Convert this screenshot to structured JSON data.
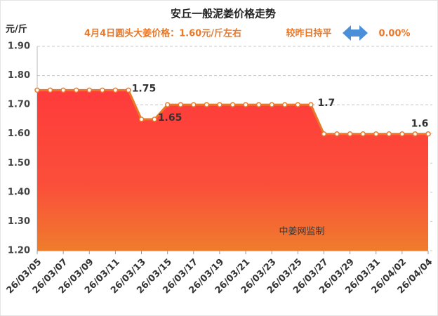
{
  "chart_data": {
    "type": "area",
    "title": "安丘一般泥姜价格走势",
    "subtitle": "4月4日圆头大姜价格：1.60元/斤左右",
    "change_text": "较昨日持平",
    "change_value": "0.00%",
    "y_label": "元/斤",
    "watermark": "中姜网监制",
    "categories": [
      "26/03/05",
      null,
      "26/03/07",
      null,
      "26/03/09",
      null,
      "26/03/11",
      null,
      "26/03/13",
      null,
      "26/03/15",
      null,
      "26/03/17",
      null,
      "26/03/19",
      null,
      "26/03/21",
      null,
      "26/03/23",
      null,
      "26/03/25",
      null,
      "26/03/27",
      null,
      "26/03/29",
      null,
      "26/03/31",
      null,
      "26/04/02",
      null,
      "26/04/04"
    ],
    "values": [
      1.75,
      1.75,
      1.75,
      1.75,
      1.75,
      1.75,
      1.75,
      1.75,
      1.65,
      1.65,
      1.7,
      1.7,
      1.7,
      1.7,
      1.7,
      1.7,
      1.7,
      1.7,
      1.7,
      1.7,
      1.7,
      1.7,
      1.6,
      1.6,
      1.6,
      1.6,
      1.6,
      1.6,
      1.6,
      1.6,
      1.6
    ],
    "value_labels": [
      null,
      null,
      null,
      null,
      null,
      null,
      null,
      "1.75",
      null,
      "1.65",
      null,
      null,
      null,
      null,
      null,
      null,
      null,
      null,
      null,
      null,
      null,
      "1.7",
      null,
      null,
      null,
      null,
      null,
      null,
      null,
      null,
      "1.6"
    ],
    "color": "#e8792b",
    "ylim": [
      1.2,
      1.9
    ],
    "yticks": [
      {
        "value": 1.2,
        "label": "1.20"
      },
      {
        "value": 1.3,
        "label": "1.30"
      },
      {
        "value": 1.4,
        "label": "1.40"
      },
      {
        "value": 1.5,
        "label": "1.50"
      },
      {
        "value": 1.6,
        "label": "1.60"
      },
      {
        "value": 1.7,
        "label": "1.70"
      },
      {
        "value": 1.8,
        "label": "1.80"
      },
      {
        "value": 1.9,
        "label": "1.90"
      }
    ],
    "grid": true
  }
}
